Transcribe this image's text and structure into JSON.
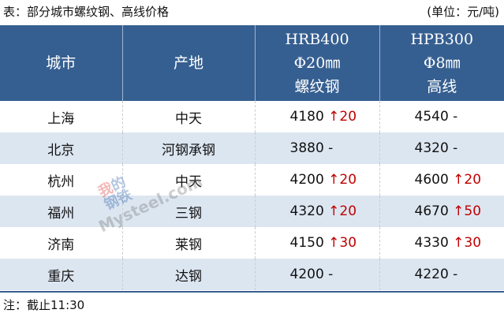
{
  "title": "表：部分城市螺纹钢、高线价格",
  "unit": "(单位：元/吨)",
  "header": {
    "city": "城市",
    "origin": "产地",
    "col3": [
      "HRB400",
      "Φ20㎜",
      "螺纹钢"
    ],
    "col4": [
      "HPB300",
      "Φ8㎜",
      "高线"
    ]
  },
  "rows": [
    {
      "city": "上海",
      "origin": "中天",
      "hrb": "4180",
      "hrb_chg": "↑20",
      "hpb": "4540",
      "hpb_chg": "-"
    },
    {
      "city": "北京",
      "origin": "河钢承钢",
      "hrb": "3880",
      "hrb_chg": "-",
      "hpb": "4320",
      "hpb_chg": "-"
    },
    {
      "city": "杭州",
      "origin": "中天",
      "hrb": "4200",
      "hrb_chg": "↑20",
      "hpb": "4600",
      "hpb_chg": "↑20"
    },
    {
      "city": "福州",
      "origin": "三钢",
      "hrb": "4320",
      "hrb_chg": "↑20",
      "hpb": "4670",
      "hpb_chg": "↑50"
    },
    {
      "city": "济南",
      "origin": "莱钢",
      "hrb": "4150",
      "hrb_chg": "↑30",
      "hpb": "4330",
      "hpb_chg": "↑30"
    },
    {
      "city": "重庆",
      "origin": "达钢",
      "hrb": "4200",
      "hrb_chg": "-",
      "hpb": "4220",
      "hpb_chg": "-"
    }
  ],
  "note": "注：截止11:30",
  "watermark": {
    "cn": [
      "我的",
      "钢铁"
    ],
    "en": "Mysteel.com"
  },
  "colors": {
    "header_bg": "#365f91",
    "alt_row": "#dce6f1",
    "up": "#c00000"
  }
}
